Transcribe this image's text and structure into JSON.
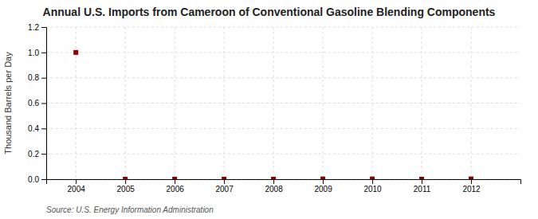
{
  "chart_data": {
    "type": "scatter",
    "title": "Annual U.S. Imports from Cameroon of Conventional Gasoline Blending Components",
    "y_label": "Thousand Barrels per Day",
    "annotations": [
      "Source: U.S. Energy Information Administration"
    ],
    "x": [
      2004,
      2005,
      2006,
      2007,
      2008,
      2009,
      2010,
      2011,
      2012
    ],
    "values": [
      1.0,
      0.0,
      0.0,
      0.0,
      0.0,
      0.002,
      0.002,
      0.0,
      0.002
    ],
    "color": "#8b0000",
    "marker": "square",
    "xlim": [
      2003.4,
      2013.0
    ],
    "xticks": [
      2004,
      2005,
      2006,
      2007,
      2008,
      2009,
      2010,
      2011,
      2012
    ],
    "ylim": [
      0.0,
      1.2
    ],
    "yticks": [
      {
        "value": 0.0,
        "label": "0.0"
      },
      0.2,
      0.4,
      0.6,
      0.8,
      {
        "value": 1.0,
        "label": "1.0"
      },
      1.2
    ],
    "grid": true
  }
}
